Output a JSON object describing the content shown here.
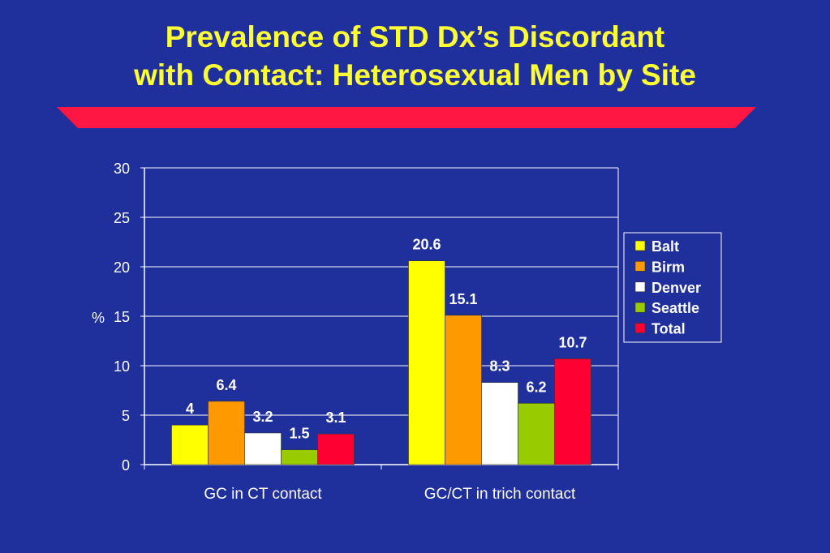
{
  "title_line1": "Prevalence of STD Dx’s Discordant",
  "title_line2": "with Contact: Heterosexual Men by Site",
  "colors": {
    "background": "#1f2f9c",
    "title": "#ffff33",
    "stripe": "#ff1744",
    "Balt": "#ffff00",
    "Birm": "#ff9900",
    "Denver": "#ffffff",
    "Seattle": "#99cc00",
    "Total": "#ff0033"
  },
  "chart_data": {
    "type": "bar",
    "categories": [
      "GC in CT contact",
      "GC/CT in trich contact"
    ],
    "series": [
      {
        "name": "Balt",
        "values": [
          4,
          20.6
        ]
      },
      {
        "name": "Birm",
        "values": [
          6.4,
          15.1
        ]
      },
      {
        "name": "Denver",
        "values": [
          3.2,
          8.3
        ]
      },
      {
        "name": "Seattle",
        "values": [
          1.5,
          6.2
        ]
      },
      {
        "name": "Total",
        "values": [
          3.1,
          10.7
        ]
      }
    ],
    "ylabel": "%",
    "ylim": [
      0,
      30
    ],
    "yticks": [
      0,
      5,
      10,
      15,
      20,
      25,
      30
    ],
    "grid": true,
    "legend": "right"
  }
}
